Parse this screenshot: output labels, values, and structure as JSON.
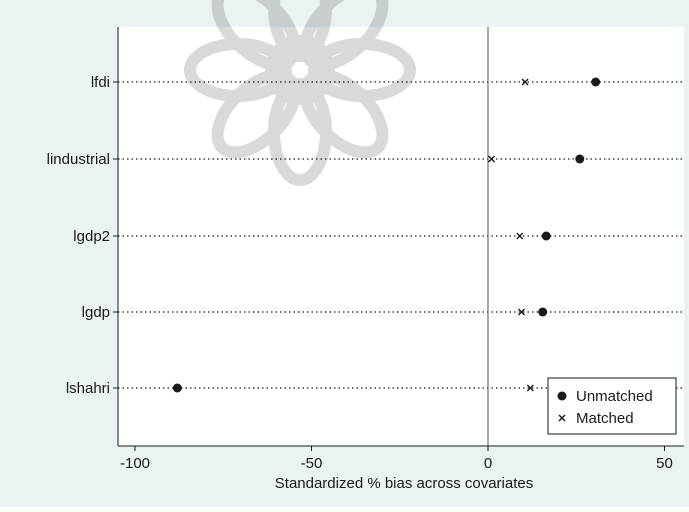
{
  "chart_data": {
    "type": "scatter",
    "title": "",
    "xlabel": "Standardized % bias across covariates",
    "ylabel": "",
    "xlim": [
      -105,
      55
    ],
    "xticks": [
      -100,
      -50,
      0,
      50
    ],
    "reference_line_x": 0,
    "grid": "dotted horizontal lines at each covariate",
    "legend_position": "bottom-right",
    "categories": [
      "lfdi",
      "lindustrial",
      "lgdp2",
      "lgdp",
      "lshahri"
    ],
    "series": [
      {
        "name": "Unmatched",
        "marker": "filled-circle",
        "color": "#1a1a1a",
        "values": [
          30.5,
          26.0,
          16.5,
          15.5,
          -88.0
        ]
      },
      {
        "name": "Matched",
        "marker": "x",
        "color": "#1a1a1a",
        "values": [
          10.5,
          1.0,
          9.0,
          9.5,
          12.0
        ]
      }
    ]
  },
  "colors": {
    "outer_background": "#eaf2f3",
    "plot_background": "#ffffff",
    "ink": "#1a1a1a"
  }
}
